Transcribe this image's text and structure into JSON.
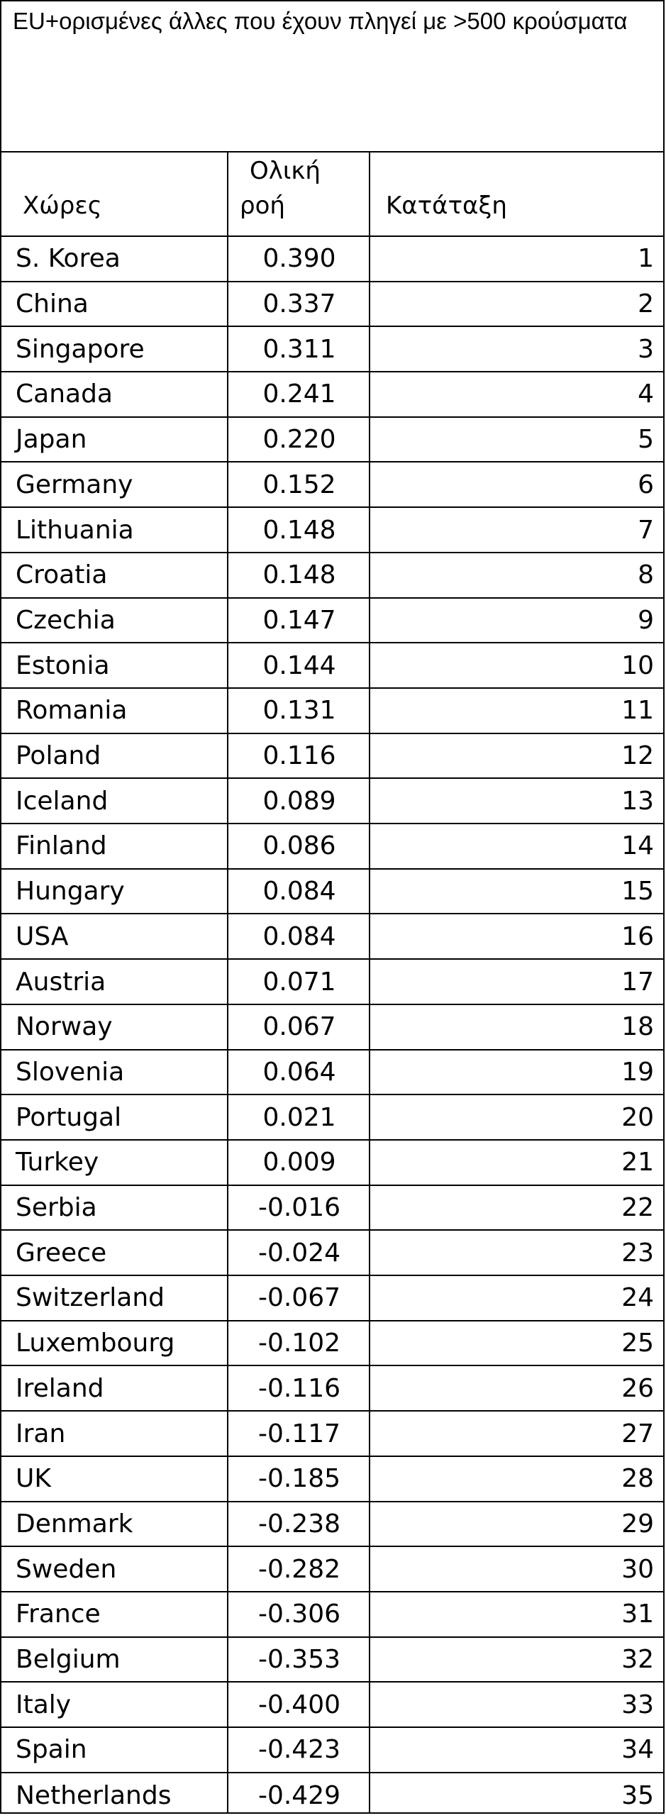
{
  "title": "EU+ορισμένες άλλες που έχουν πληγεί με >500 κρούσματα",
  "headers": {
    "country": "Χώρες",
    "flow_line1": "Ολική",
    "flow_line2": "ροή",
    "rank": "Κατάταξη"
  },
  "rows": [
    {
      "country": "S. Korea",
      "flow": "0.390",
      "rank": "1"
    },
    {
      "country": "China",
      "flow": "0.337",
      "rank": "2"
    },
    {
      "country": "Singapore",
      "flow": "0.311",
      "rank": "3"
    },
    {
      "country": "Canada",
      "flow": "0.241",
      "rank": "4"
    },
    {
      "country": "Japan",
      "flow": "0.220",
      "rank": "5"
    },
    {
      "country": "Germany",
      "flow": "0.152",
      "rank": "6"
    },
    {
      "country": "Lithuania",
      "flow": "0.148",
      "rank": "7"
    },
    {
      "country": "Croatia",
      "flow": "0.148",
      "rank": "8"
    },
    {
      "country": "Czechia",
      "flow": "0.147",
      "rank": "9"
    },
    {
      "country": "Estonia",
      "flow": "0.144",
      "rank": "10"
    },
    {
      "country": "Romania",
      "flow": "0.131",
      "rank": "11"
    },
    {
      "country": "Poland",
      "flow": "0.116",
      "rank": "12"
    },
    {
      "country": "Iceland",
      "flow": "0.089",
      "rank": "13"
    },
    {
      "country": "Finland",
      "flow": "0.086",
      "rank": "14"
    },
    {
      "country": "Hungary",
      "flow": "0.084",
      "rank": "15"
    },
    {
      "country": "USA",
      "flow": "0.084",
      "rank": "16"
    },
    {
      "country": "Austria",
      "flow": "0.071",
      "rank": "17"
    },
    {
      "country": "Norway",
      "flow": "0.067",
      "rank": "18"
    },
    {
      "country": "Slovenia",
      "flow": "0.064",
      "rank": "19"
    },
    {
      "country": "Portugal",
      "flow": "0.021",
      "rank": "20"
    },
    {
      "country": "Turkey",
      "flow": "0.009",
      "rank": "21"
    },
    {
      "country": "Serbia",
      "flow": "-0.016",
      "rank": "22"
    },
    {
      "country": "Greece",
      "flow": "-0.024",
      "rank": "23"
    },
    {
      "country": "Switzerland",
      "flow": "-0.067",
      "rank": "24"
    },
    {
      "country": "Luxembourg",
      "flow": "-0.102",
      "rank": "25"
    },
    {
      "country": "Ireland",
      "flow": "-0.116",
      "rank": "26"
    },
    {
      "country": "Iran",
      "flow": "-0.117",
      "rank": "27"
    },
    {
      "country": "UK",
      "flow": "-0.185",
      "rank": "28"
    },
    {
      "country": "Denmark",
      "flow": "-0.238",
      "rank": "29"
    },
    {
      "country": "Sweden",
      "flow": "-0.282",
      "rank": "30"
    },
    {
      "country": "France",
      "flow": "-0.306",
      "rank": "31"
    },
    {
      "country": "Belgium",
      "flow": "-0.353",
      "rank": "32"
    },
    {
      "country": "Italy",
      "flow": "-0.400",
      "rank": "33"
    },
    {
      "country": "Spain",
      "flow": "-0.423",
      "rank": "34"
    },
    {
      "country": "Netherlands",
      "flow": "-0.429",
      "rank": "35"
    }
  ]
}
